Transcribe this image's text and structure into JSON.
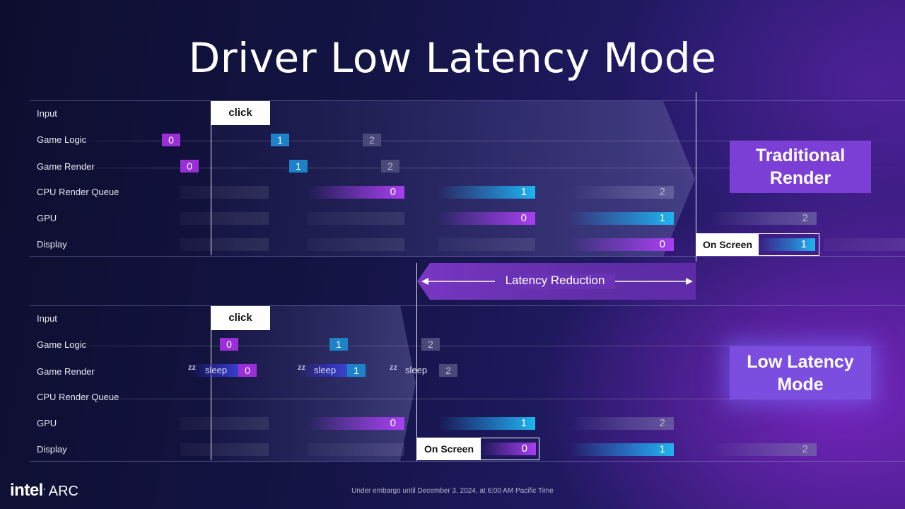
{
  "title": "Driver Low Latency Mode",
  "rows": [
    "Input",
    "Game Logic",
    "Game Render",
    "CPU Render Queue",
    "GPU",
    "Display"
  ],
  "click_label": "click",
  "frames": [
    "0",
    "1",
    "2"
  ],
  "sleep_label": "sleep",
  "on_screen_label": "On Screen",
  "latency_reduction": "Latency Reduction",
  "traditional_caption": "Traditional Render",
  "low_latency_caption": "Low Latency Mode",
  "footer": "Under embargo until December 3, 2024, at 6:00 AM Pacific Time",
  "logo": {
    "brand": "intel",
    "product": "ARC"
  },
  "colors": {
    "purple": "#a83ff0",
    "blue": "#1fb4ee",
    "caption": "#7c3fd6"
  }
}
